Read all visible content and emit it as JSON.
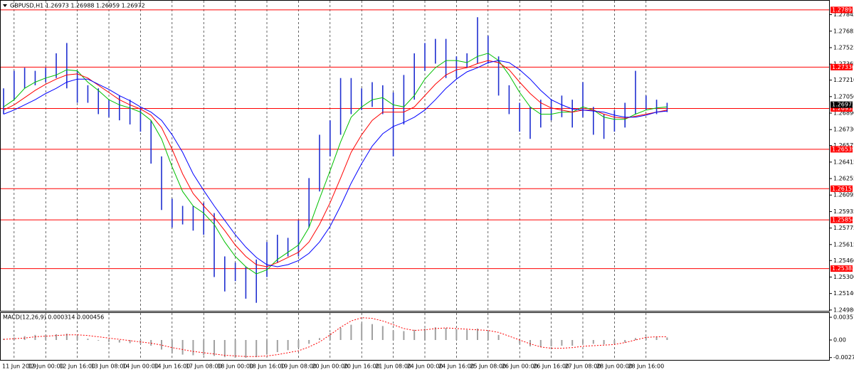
{
  "chart_data": [
    {
      "type": "range-bar",
      "title": "GBPUSD,H1  1.26973 1.26988 1.26959 1.26972",
      "xlim": [
        -0.34,
        78.38
      ],
      "xticks": [
        {
          "value": 1,
          "label": "11 Jun 2019"
        },
        {
          "value": 4,
          "label": "12 Jun 00:00"
        },
        {
          "value": 7,
          "label": "12 Jun 16:00"
        },
        {
          "value": 10,
          "label": "13 Jun 08:00"
        },
        {
          "value": 13,
          "label": "14 Jun 00:00"
        },
        {
          "value": 16,
          "label": "14 Jun 16:00"
        },
        {
          "value": 19,
          "label": "17 Jun 08:00"
        },
        {
          "value": 22,
          "label": "18 Jun 00:00"
        },
        {
          "value": 25,
          "label": "18 Jun 16:00"
        },
        {
          "value": 28,
          "label": "19 Jun 08:00"
        },
        {
          "value": 31,
          "label": "20 Jun 00:00"
        },
        {
          "value": 34,
          "label": "20 Jun 16:00"
        },
        {
          "value": 37,
          "label": "21 Jun 08:00"
        },
        {
          "value": 40,
          "label": "24 Jun 00:00"
        },
        {
          "value": 43,
          "label": "24 Jun 16:00"
        },
        {
          "value": 46,
          "label": "25 Jun 08:00"
        },
        {
          "value": 49,
          "label": "26 Jun 00:00"
        },
        {
          "value": 52,
          "label": "26 Jun 16:00"
        },
        {
          "value": 55,
          "label": "27 Jun 08:00"
        },
        {
          "value": 58,
          "label": "28 Jun 00:00"
        },
        {
          "value": 61,
          "label": "28 Jun 16:00"
        }
      ],
      "xgrid": true,
      "ylim": [
        1.24979,
        1.27987
      ],
      "yticks": [
        1.27845,
        1.27685,
        1.27525,
        1.27365,
        {
          "value": 1.2721,
          "label": "1.27210"
        },
        {
          "value": 1.2705,
          "label": "1.27050"
        },
        {
          "value": 1.2689,
          "label": "1.26890"
        },
        {
          "value": 1.2673,
          "label": "1.26730"
        },
        1.26575,
        1.26415,
        1.26255,
        1.26095,
        1.25935,
        1.25775,
        1.25615,
        {
          "value": 1.2546,
          "label": "1.25460"
        },
        {
          "value": 1.253,
          "label": "1.25300"
        },
        {
          "value": 1.2514,
          "label": "1.25140"
        },
        {
          "value": 1.2498,
          "label": "1.24980"
        }
      ],
      "bar_color": "#1f2fd0",
      "high": [
        1.2713,
        1.273,
        1.2733,
        1.273,
        1.2733,
        1.2747,
        1.2757,
        1.273,
        1.2716,
        1.2713,
        1.2702,
        1.2706,
        1.2702,
        1.2695,
        1.2682,
        1.2647,
        1.2606,
        1.2599,
        1.2599,
        1.2602,
        1.2592,
        1.255,
        1.2544,
        1.254,
        1.2547,
        1.2564,
        1.2571,
        1.2568,
        1.2585,
        1.2626,
        1.2668,
        1.2682,
        1.2723,
        1.2723,
        1.2713,
        1.2719,
        1.2716,
        1.2709,
        1.2726,
        1.2747,
        1.2757,
        1.2761,
        1.2761,
        1.2744,
        1.2747,
        1.2782,
        1.2764,
        1.2744,
        1.2716,
        1.2699,
        1.2695,
        1.2702,
        1.2702,
        1.2706,
        1.2702,
        1.2719,
        1.2695,
        1.2688,
        1.2692,
        1.2699,
        1.273,
        1.2706,
        1.2702,
        1.2699
      ],
      "low": [
        1.2688,
        1.2702,
        1.2713,
        1.2716,
        1.2719,
        1.2723,
        1.2713,
        1.2699,
        1.2699,
        1.2688,
        1.2685,
        1.2682,
        1.2678,
        1.2671,
        1.264,
        1.2595,
        1.2578,
        1.2581,
        1.2575,
        1.2571,
        1.253,
        1.2516,
        1.2526,
        1.2509,
        1.2505,
        1.253,
        1.2544,
        1.255,
        1.255,
        1.2578,
        1.2613,
        1.2647,
        1.2668,
        1.2688,
        1.2692,
        1.2695,
        1.2688,
        1.2647,
        1.2678,
        1.2702,
        1.273,
        1.2737,
        1.2723,
        1.2723,
        1.2733,
        1.2737,
        1.2737,
        1.2706,
        1.2688,
        1.2671,
        1.2664,
        1.2675,
        1.2682,
        1.2685,
        1.2675,
        1.2685,
        1.2668,
        1.2664,
        1.2671,
        1.2675,
        1.2688,
        1.2692,
        1.2688,
        1.269
      ],
      "series": [
        {
          "color": "#00c000",
          "values": [
            1.2695,
            1.2702,
            1.2713,
            1.2719,
            1.2723,
            1.2726,
            1.2731,
            1.273,
            1.2719,
            1.2711,
            1.2702,
            1.2697,
            1.2694,
            1.269,
            1.2682,
            1.2664,
            1.2637,
            1.2613,
            1.2599,
            1.2592,
            1.2581,
            1.2564,
            1.255,
            1.254,
            1.2533,
            1.2537,
            1.2547,
            1.2554,
            1.2561,
            1.2578,
            1.2606,
            1.2633,
            1.2661,
            1.2685,
            1.2695,
            1.2702,
            1.2704,
            1.2697,
            1.2695,
            1.2706,
            1.2722,
            1.2733,
            1.274,
            1.274,
            1.2738,
            1.2744,
            1.2747,
            1.274,
            1.2726,
            1.2709,
            1.2695,
            1.2688,
            1.2688,
            1.269,
            1.269,
            1.2695,
            1.2692,
            1.2685,
            1.2683,
            1.2683,
            1.2688,
            1.2692,
            1.2694,
            1.2695
          ]
        },
        {
          "color": "#ff0000",
          "values": [
            1.2692,
            1.2697,
            1.2704,
            1.2711,
            1.2717,
            1.2722,
            1.2726,
            1.2727,
            1.2723,
            1.2716,
            1.2709,
            1.2702,
            1.2697,
            1.2693,
            1.2687,
            1.2675,
            1.2654,
            1.263,
            1.2611,
            1.2599,
            1.2588,
            1.2575,
            1.2561,
            1.255,
            1.2542,
            1.254,
            1.2544,
            1.2549,
            1.2554,
            1.2564,
            1.2581,
            1.2602,
            1.2626,
            1.2651,
            1.2668,
            1.2682,
            1.269,
            1.269,
            1.269,
            1.2695,
            1.2706,
            1.2717,
            1.2726,
            1.2731,
            1.2733,
            1.2737,
            1.274,
            1.2738,
            1.2731,
            1.2719,
            1.2708,
            1.2699,
            1.2694,
            1.2692,
            1.269,
            1.2692,
            1.2692,
            1.2688,
            1.2685,
            1.2684,
            1.2686,
            1.2688,
            1.269,
            1.2692
          ]
        },
        {
          "color": "#0000ff",
          "values": [
            1.2688,
            1.2692,
            1.2697,
            1.2702,
            1.2708,
            1.2713,
            1.2719,
            1.2722,
            1.2722,
            1.2717,
            1.2712,
            1.2706,
            1.2701,
            1.2695,
            1.269,
            1.2682,
            1.2668,
            1.2651,
            1.263,
            1.2614,
            1.2599,
            1.2585,
            1.2571,
            1.2559,
            1.2549,
            1.2542,
            1.254,
            1.2542,
            1.2546,
            1.2553,
            1.2564,
            1.2579,
            1.2599,
            1.2621,
            1.264,
            1.2657,
            1.2669,
            1.2676,
            1.268,
            1.2685,
            1.2692,
            1.2702,
            1.2713,
            1.2722,
            1.2729,
            1.2733,
            1.2738,
            1.274,
            1.2738,
            1.2731,
            1.2722,
            1.2711,
            1.2702,
            1.2697,
            1.2693,
            1.2692,
            1.2691,
            1.269,
            1.2687,
            1.2685,
            1.2685,
            1.2687,
            1.269,
            1.2691
          ]
        }
      ],
      "levels": {
        "color": "#ff0000",
        "values": [
          1.27891,
          1.27336,
          1.26935,
          1.26539,
          1.26157,
          1.25854,
          1.25382
        ]
      },
      "bid": 1.26972
    },
    {
      "type": "macd",
      "title": "MACD(12,26,9) 0.000314 0.000456",
      "ylim": [
        -0.00302,
        0.00425
      ],
      "yticks": [
        0.003576,
        {
          "value": 0,
          "label": "0.00"
        },
        -0.002764
      ],
      "histogram": {
        "color": "#a0a0a0",
        "values": [
          0.0002,
          0.0004,
          0.0006,
          0.0008,
          0.0008,
          0.0009,
          0.001,
          0.0006,
          0.0002,
          -0.0001,
          -0.0003,
          -0.0004,
          -0.0005,
          -0.0006,
          -0.0009,
          -0.0015,
          -0.0021,
          -0.0023,
          -0.0024,
          -0.0024,
          -0.0025,
          -0.0027,
          -0.0028,
          -0.0028,
          -0.0027,
          -0.0023,
          -0.0019,
          -0.0016,
          -0.0012,
          -0.0006,
          0.0003,
          0.0011,
          0.0019,
          0.0024,
          0.0026,
          0.0025,
          0.0022,
          0.0015,
          0.0014,
          0.0016,
          0.0018,
          0.002,
          0.0019,
          0.0017,
          0.0016,
          0.0018,
          0.0015,
          0.0008,
          0,
          -0.0006,
          -0.001,
          -0.0011,
          -0.001,
          -0.0009,
          -0.0009,
          -0.0006,
          -0.0006,
          -0.0007,
          -0.0006,
          -0.0004,
          0.0003,
          0.0005,
          0.0005,
          0.0004
        ]
      },
      "signal": {
        "color": "#ff0000",
        "values": [
          0.0001,
          0.0002,
          0.0003,
          0.0005,
          0.0006,
          0.0007,
          0.0008,
          0.0008,
          0.0007,
          0.0005,
          0.0003,
          0.0001,
          -0.0001,
          -0.0003,
          -0.0005,
          -0.0008,
          -0.0012,
          -0.0015,
          -0.0018,
          -0.002,
          -0.0022,
          -0.0024,
          -0.0025,
          -0.0026,
          -0.0026,
          -0.0025,
          -0.0023,
          -0.002,
          -0.0017,
          -0.0011,
          -0.0003,
          0.0008,
          0.002,
          0.003,
          0.0035,
          0.0034,
          0.003,
          0.0024,
          0.0018,
          0.0015,
          0.0016,
          0.0018,
          0.0019,
          0.0018,
          0.0017,
          0.0016,
          0.0015,
          0.0012,
          0.0006,
          0,
          -0.0006,
          -0.0011,
          -0.0013,
          -0.0013,
          -0.0012,
          -0.001,
          -0.0009,
          -0.0008,
          -0.0007,
          -0.0004,
          0,
          0.0004,
          0.0005,
          0.0005
        ]
      }
    }
  ]
}
